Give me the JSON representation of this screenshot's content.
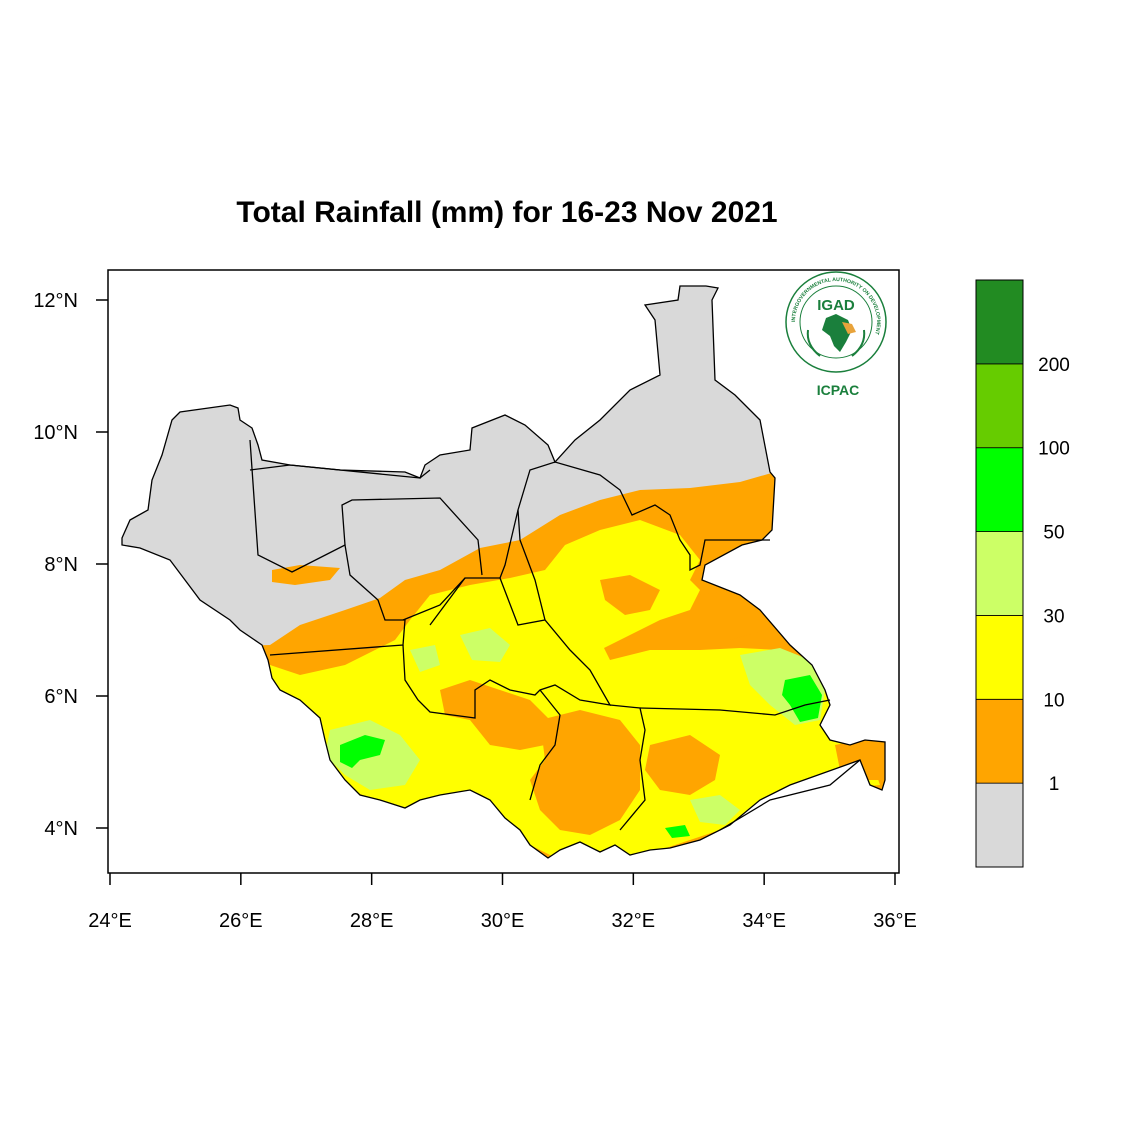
{
  "title": "Total Rainfall (mm) for 16-23 Nov 2021",
  "map": {
    "region": "South Sudan",
    "lon_range": [
      24,
      36
    ],
    "lat_range": [
      3.4,
      12.45
    ],
    "lon_ticks": [
      "24°E",
      "26°E",
      "28°E",
      "30°E",
      "32°E",
      "34°E",
      "36°E"
    ],
    "lon_tick_values": [
      24,
      26,
      28,
      30,
      32,
      34,
      36
    ],
    "lat_ticks": [
      "4°N",
      "6°N",
      "8°N",
      "10°N",
      "12°N"
    ],
    "lat_tick_values": [
      4,
      6,
      8,
      10,
      12
    ]
  },
  "legend": {
    "classes": [
      {
        "color": "#d9d9d9"
      },
      {
        "color": "#ffa500"
      },
      {
        "color": "#ffff00"
      },
      {
        "color": "#ccff66"
      },
      {
        "color": "#00ff00"
      },
      {
        "color": "#66cc00"
      },
      {
        "color": "#228b22"
      }
    ],
    "labels": [
      "1",
      "10",
      "30",
      "50",
      "100",
      "200"
    ]
  },
  "logo": {
    "top_text": "IGAD",
    "bottom_text": "ICPAC",
    "ring_text": "INTERGOVERNMENTAL AUTHORITY ON DEVELOPMENT"
  },
  "colors": {
    "no_rain": "#d9d9d9",
    "r1_10": "#ffa500",
    "r10_30": "#ffff00",
    "r30_50": "#ccff66",
    "r50_100": "#00ff00",
    "r100_200": "#66cc00",
    "r200_plus": "#228b22",
    "logo_green": "#1a7f3c"
  }
}
